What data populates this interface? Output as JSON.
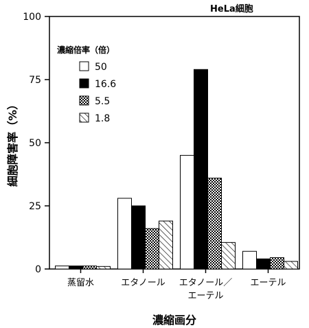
{
  "chart_data": {
    "type": "bar",
    "annotation": "HeLa細胞",
    "ylabel": "細胞障害率（%）",
    "xlabel": "濃縮画分",
    "ylim": [
      0,
      100
    ],
    "yticks": [
      "0",
      "25",
      "50",
      "75",
      "100"
    ],
    "categories": [
      {
        "lines": [
          "蒸留水"
        ]
      },
      {
        "lines": [
          "エタノール"
        ]
      },
      {
        "lines": [
          "エタノール／",
          "エーテル"
        ]
      },
      {
        "lines": [
          "エーテル"
        ]
      }
    ],
    "legend": {
      "title": "濃縮倍率（倍）",
      "placement": "top-left"
    },
    "series": [
      {
        "name": "50",
        "pattern": "white",
        "values": [
          1.2,
          28,
          45,
          7
        ]
      },
      {
        "name": "16.6",
        "pattern": "black",
        "values": [
          1.2,
          25,
          79,
          4
        ]
      },
      {
        "name": "5.5",
        "pattern": "dots",
        "values": [
          1.2,
          16,
          36,
          4.5
        ]
      },
      {
        "name": "1.8",
        "pattern": "hatch",
        "values": [
          1.0,
          19,
          10.5,
          3
        ]
      }
    ],
    "grid": false
  }
}
